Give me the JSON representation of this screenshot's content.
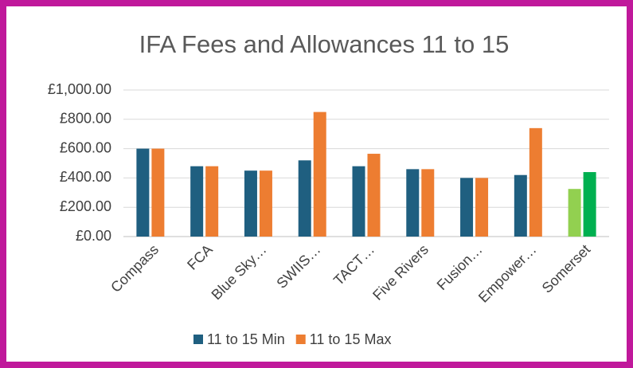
{
  "chart_data": {
    "type": "bar",
    "title": "IFA Fees and Allowances 11 to 15",
    "categories": [
      "Compass",
      "FCA",
      "Blue Sky…",
      "SWIIS…",
      "TACT…",
      "Five Rivers",
      "Fusion…",
      "Empower…",
      "Somerset"
    ],
    "series": [
      {
        "name": "11 to 15 Min",
        "color": "#1f5f80",
        "values": [
          600,
          480,
          450,
          520,
          480,
          460,
          400,
          420,
          325
        ],
        "colors": [
          "#1f5f80",
          "#1f5f80",
          "#1f5f80",
          "#1f5f80",
          "#1f5f80",
          "#1f5f80",
          "#1f5f80",
          "#1f5f80",
          "#92d050"
        ]
      },
      {
        "name": "11 to 15 Max",
        "color": "#ed7d31",
        "values": [
          600,
          480,
          450,
          850,
          565,
          460,
          400,
          740,
          440
        ],
        "colors": [
          "#ed7d31",
          "#ed7d31",
          "#ed7d31",
          "#ed7d31",
          "#ed7d31",
          "#ed7d31",
          "#ed7d31",
          "#ed7d31",
          "#00b050"
        ]
      }
    ],
    "ylim": [
      0,
      1000
    ],
    "yticks": [
      {
        "value": 0,
        "label": "£0.00"
      },
      {
        "value": 200,
        "label": "£200.00"
      },
      {
        "value": 400,
        "label": "£400.00"
      },
      {
        "value": 600,
        "label": "£600.00"
      },
      {
        "value": 800,
        "label": "£800.00"
      },
      {
        "value": 1000,
        "label": "£1,000.00"
      }
    ],
    "grid": true,
    "legend": "bottom"
  }
}
